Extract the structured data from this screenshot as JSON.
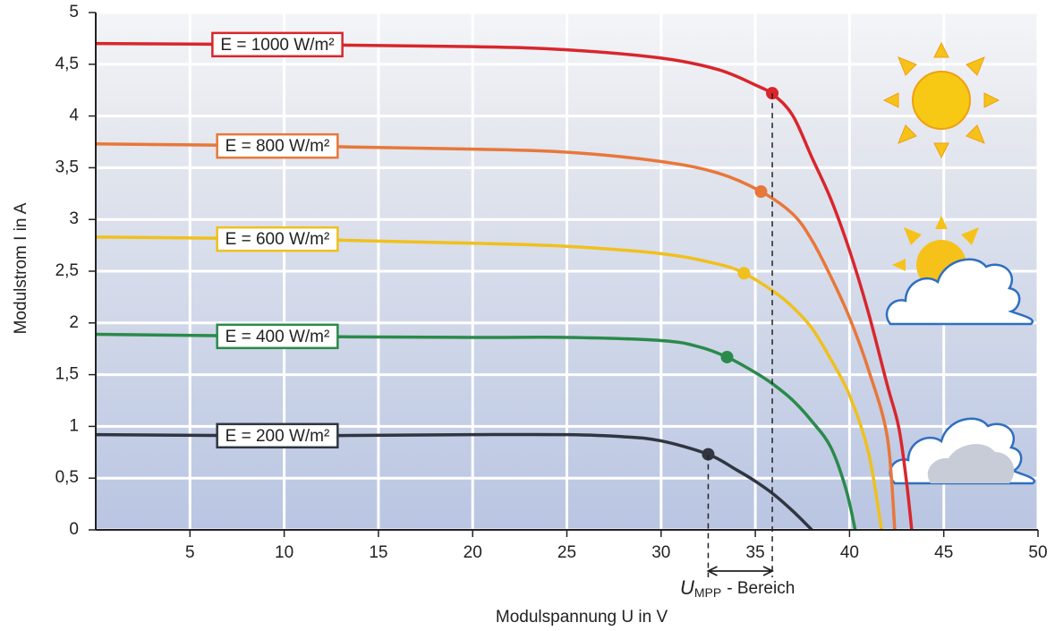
{
  "chart_data": {
    "type": "line",
    "xlabel": "Modulspannung U in V",
    "ylabel": "Modulstrom I in A",
    "annotation": {
      "symbol": "U",
      "subscript": "MPP",
      "text": "- Bereich"
    },
    "xlim": [
      0,
      50
    ],
    "xticks": [
      5,
      10,
      15,
      20,
      25,
      30,
      35,
      40,
      45,
      50
    ],
    "ylim": [
      0,
      5
    ],
    "yticks": [
      0,
      {
        "value": 0.5,
        "label": "0,5"
      },
      1,
      {
        "value": 1.5,
        "label": "1,5"
      },
      2,
      {
        "value": 2.5,
        "label": "2,5"
      },
      3,
      {
        "value": 3.5,
        "label": "3,5"
      },
      4,
      {
        "value": 4.5,
        "label": "4,5"
      },
      5
    ],
    "grid": true,
    "series": [
      {
        "name": "E = 1000 W/m²",
        "color": "#d8262c",
        "x": [
          0,
          10,
          20,
          25,
          30,
          33,
          35,
          36,
          37,
          38,
          39,
          40,
          41,
          42,
          42.6,
          43,
          43.3
        ],
        "values": [
          4.7,
          4.69,
          4.67,
          4.64,
          4.56,
          4.45,
          4.3,
          4.2,
          4.0,
          3.6,
          3.2,
          2.7,
          2.1,
          1.4,
          1.0,
          0.5,
          0
        ],
        "mpp": [
          35.9,
          4.22
        ]
      },
      {
        "name": "E = 800 W/m²",
        "color": "#e8773a",
        "x": [
          0,
          10,
          20,
          25,
          30,
          33,
          35.3,
          37,
          38,
          39,
          40,
          41,
          42,
          42.4
        ],
        "values": [
          3.73,
          3.71,
          3.68,
          3.65,
          3.56,
          3.45,
          3.27,
          3.05,
          2.8,
          2.45,
          2.05,
          1.55,
          0.9,
          0
        ],
        "mpp": [
          35.3,
          3.27
        ]
      },
      {
        "name": "E = 600 W/m²",
        "color": "#f0c01c",
        "x": [
          0,
          10,
          20,
          25,
          30,
          33,
          34.4,
          36,
          37,
          38,
          39,
          40,
          41,
          41.7
        ],
        "values": [
          2.83,
          2.81,
          2.77,
          2.74,
          2.67,
          2.57,
          2.48,
          2.3,
          2.15,
          1.95,
          1.65,
          1.3,
          0.75,
          0
        ],
        "mpp": [
          34.4,
          2.48
        ]
      },
      {
        "name": "E = 400 W/m²",
        "color": "#2a8a4a",
        "x": [
          0,
          10,
          20,
          25,
          30,
          32,
          33.5,
          35,
          36,
          37,
          38,
          39,
          39.8,
          40.3
        ],
        "values": [
          1.89,
          1.87,
          1.86,
          1.86,
          1.83,
          1.77,
          1.67,
          1.52,
          1.4,
          1.25,
          1.05,
          0.8,
          0.4,
          0
        ],
        "mpp": [
          33.5,
          1.67
        ]
      },
      {
        "name": "E = 200 W/m²",
        "color": "#2f3640",
        "x": [
          0,
          10,
          20,
          25,
          28,
          30,
          32.5,
          34,
          35,
          36,
          37,
          38
        ],
        "values": [
          0.92,
          0.91,
          0.92,
          0.92,
          0.9,
          0.86,
          0.73,
          0.58,
          0.47,
          0.34,
          0.18,
          0
        ],
        "mpp": [
          32.5,
          0.73
        ]
      }
    ]
  }
}
